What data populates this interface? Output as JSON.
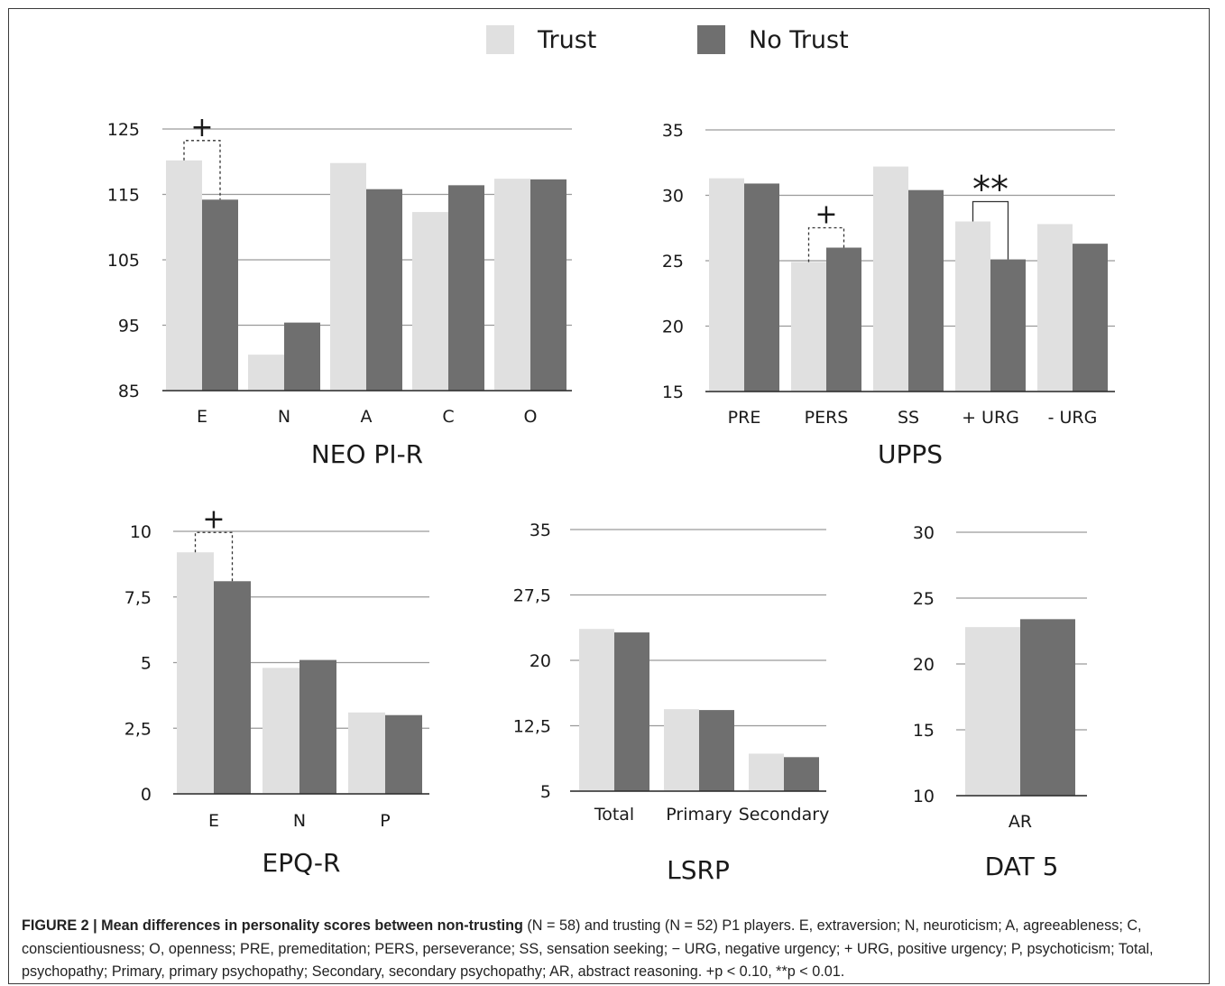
{
  "legend": [
    {
      "label": "Trust",
      "color": "#e0e0e0"
    },
    {
      "label": "No Trust",
      "color": "#6f6f6f"
    }
  ],
  "caption": {
    "bold": "FIGURE 2 | Mean differences in personality scores between non-trusting",
    "rest": " (N = 58) and trusting (N = 52) P1 players. E, extraversion; N, neuroticism; A, agreeableness; C, conscientiousness; O, openness; PRE, premeditation; PERS, perseverance; SS, sensation seeking; − URG, negative urgency; + URG, positive urgency; P, psychoticism; Total, psychopathy; Primary, primary psychopathy; Secondary, secondary psychopathy; AR, abstract reasoning. +p < 0.10, **p < 0.01."
  },
  "chart_data": [
    {
      "type": "bar",
      "title": "NEO PI-R",
      "categories": [
        "E",
        "N",
        "A",
        "C",
        "O"
      ],
      "series": [
        {
          "name": "Trust",
          "values": [
            120.2,
            90.5,
            119.8,
            112.3,
            117.4
          ]
        },
        {
          "name": "No Trust",
          "values": [
            114.2,
            95.4,
            115.8,
            116.4,
            117.3
          ]
        }
      ],
      "ylim": [
        85,
        125
      ],
      "yticks": [
        "125",
        "115",
        "105",
        "95",
        "85"
      ],
      "grid": true,
      "significance": [
        {
          "category": "E",
          "marker": "+",
          "style": "dashed"
        }
      ]
    },
    {
      "type": "bar",
      "title": "UPPS",
      "categories": [
        "PRE",
        "PERS",
        "SS",
        "+ URG",
        "- URG"
      ],
      "series": [
        {
          "name": "Trust",
          "values": [
            31.3,
            24.9,
            32.2,
            28.0,
            27.8
          ]
        },
        {
          "name": "No Trust",
          "values": [
            30.9,
            26.0,
            30.4,
            25.1,
            26.3
          ]
        }
      ],
      "ylim": [
        15,
        35
      ],
      "yticks": [
        "35",
        "30",
        "25",
        "20",
        "15"
      ],
      "grid": true,
      "significance": [
        {
          "category": "PERS",
          "marker": "+",
          "style": "dashed"
        },
        {
          "category": "+ URG",
          "marker": "**",
          "style": "solid"
        }
      ]
    },
    {
      "type": "bar",
      "title": "EPQ-R",
      "categories": [
        "E",
        "N",
        "P"
      ],
      "series": [
        {
          "name": "Trust",
          "values": [
            9.2,
            4.8,
            3.1
          ]
        },
        {
          "name": "No Trust",
          "values": [
            8.1,
            5.1,
            3.0
          ]
        }
      ],
      "ylim": [
        0,
        10
      ],
      "yticks": [
        "10",
        "7,5",
        "5",
        "2,5",
        "0"
      ],
      "grid": true,
      "significance": [
        {
          "category": "E",
          "marker": "+",
          "style": "dashed"
        }
      ]
    },
    {
      "type": "bar",
      "title": "LSRP",
      "categories": [
        "Total",
        "Primary",
        "Secondary"
      ],
      "series": [
        {
          "name": "Trust",
          "values": [
            23.6,
            14.4,
            9.3
          ]
        },
        {
          "name": "No Trust",
          "values": [
            23.2,
            14.3,
            8.9
          ]
        }
      ],
      "ylim": [
        5,
        35
      ],
      "yticks": [
        "35",
        "27,5",
        "20",
        "12,5",
        "5"
      ],
      "grid": true,
      "significance": []
    },
    {
      "type": "bar",
      "title": "DAT 5",
      "categories": [
        "AR"
      ],
      "series": [
        {
          "name": "Trust",
          "values": [
            22.8
          ]
        },
        {
          "name": "No Trust",
          "values": [
            23.4
          ]
        }
      ],
      "ylim": [
        10,
        30
      ],
      "yticks": [
        "30",
        "25",
        "20",
        "15",
        "10"
      ],
      "grid": true,
      "significance": []
    }
  ]
}
